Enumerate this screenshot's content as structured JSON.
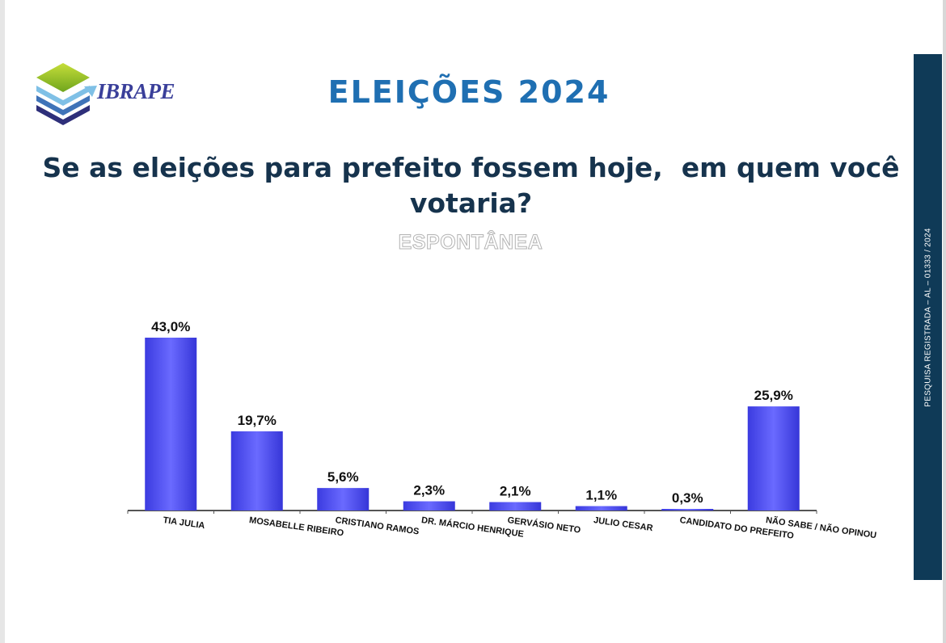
{
  "brand": {
    "name": "IBRAPE"
  },
  "header": {
    "title": "ELEIÇÕES 2024"
  },
  "question": {
    "line1": "Se as eleições para prefeito fossem hoje,  em quem você",
    "line2": "votaria?"
  },
  "subtitle": "ESPONTÂNEA",
  "side_note": "PESQUISA REGISTRADA – AL – 01333 / 2024",
  "colors": {
    "bar": "#4a4af0",
    "title": "#1f6fb2",
    "question": "#16334d",
    "side_bar": "#0f3a57"
  },
  "chart_data": {
    "type": "bar",
    "categories": [
      "TIA JULIA",
      "MOSABELLE RIBEIRO",
      "CRISTIANO RAMOS",
      "DR. MÁRCIO HENRIQUE",
      "GERVÁSIO NETO",
      "JULIO CESAR",
      "CANDIDATO DO PREFEITO",
      "NÃO SABE / NÃO OPINOU"
    ],
    "values": [
      43.0,
      19.7,
      5.6,
      2.3,
      2.1,
      1.1,
      0.3,
      25.9
    ],
    "value_labels": [
      "43,0%",
      "19,7%",
      "5,6%",
      "2,3%",
      "2,1%",
      "1,1%",
      "0,3%",
      "25,9%"
    ],
    "title": "",
    "xlabel": "",
    "ylabel": "",
    "ylim": [
      0,
      43.0
    ],
    "grid": false,
    "legend": "none"
  }
}
